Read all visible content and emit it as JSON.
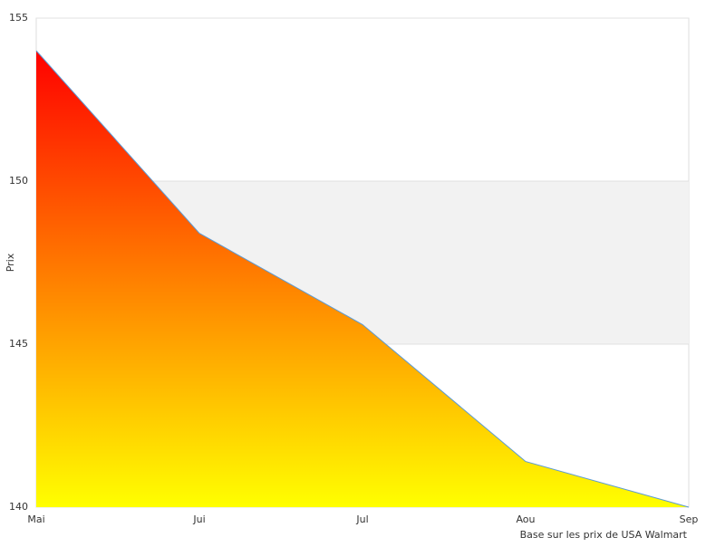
{
  "chart_data": {
    "type": "area",
    "y_label": "Prix",
    "note": "Base sur les prix de USA Walmart",
    "categories": [
      "Mai",
      "Jui",
      "Jul",
      "Aou",
      "Sep"
    ],
    "values": [
      154.0,
      148.4,
      145.6,
      141.4,
      140.0
    ],
    "line_color": "#5b9bd5",
    "gradient": [
      "#ff0000",
      "#ffff00"
    ],
    "band_color": "#f2f2f2",
    "ylim": [
      140,
      155
    ],
    "yticks": [
      140,
      145,
      150,
      155
    ]
  }
}
